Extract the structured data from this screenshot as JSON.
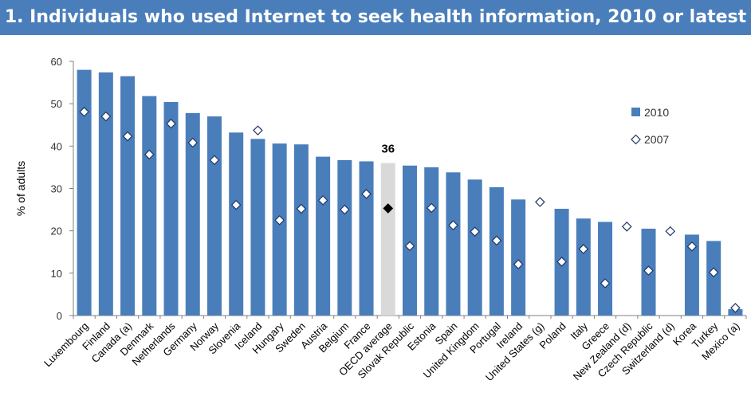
{
  "chart_data": {
    "type": "bar",
    "title": "1. Individuals who used Internet to seek health information, 2010 or latest",
    "ylabel": "% of adults",
    "ylim": [
      0,
      60
    ],
    "yticks": [
      0,
      10,
      20,
      30,
      40,
      50,
      60
    ],
    "legend_position": "right",
    "highlight_category": "OECD average",
    "highlight_label": "36",
    "colors": {
      "bar": "#4a7ebb",
      "highlight": "#d9d9d9",
      "marker_fill": "#ffffff",
      "marker_stroke": "#1f3864",
      "highlight_marker": "#000000",
      "title_bg": "#4a7ebb"
    },
    "categories": [
      "Luxembourg",
      "Finland",
      "Canada (a)",
      "Denmark",
      "Netherlands",
      "Germany",
      "Norway",
      "Slovenia",
      "Iceland",
      "Hungary",
      "Sweden",
      "Austria",
      "Belgium",
      "France",
      "OECD average",
      "Slovak Republic",
      "Estonia",
      "Spain",
      "United Kingdom",
      "Portugal",
      "Ireland",
      "United States (g)",
      "Poland",
      "Italy",
      "Greece",
      "New Zealand (d)",
      "Czech Republic",
      "Switzerland (d)",
      "Korea",
      "Turkey",
      "Mexico (a)"
    ],
    "series": [
      {
        "name": "2010",
        "kind": "bar",
        "values": [
          58,
          57.4,
          56.5,
          51.8,
          50.4,
          47.8,
          47,
          43.2,
          41.7,
          40.6,
          40.4,
          37.5,
          36.7,
          36.4,
          36,
          35.4,
          35,
          33.8,
          32.1,
          30.3,
          27.4,
          null,
          25.2,
          22.9,
          22.1,
          null,
          20.5,
          null,
          19.1,
          17.6,
          1.5
        ]
      },
      {
        "name": "2007",
        "kind": "marker",
        "values": [
          48.1,
          47,
          42.3,
          38,
          45.3,
          40.8,
          36.7,
          26.1,
          43.7,
          22.5,
          25.2,
          27.2,
          25,
          28.7,
          25.3,
          16.4,
          25.4,
          21.3,
          19.8,
          17.7,
          12.1,
          26.8,
          12.7,
          15.7,
          7.6,
          21,
          10.6,
          19.9,
          16.3,
          10.2,
          1.8
        ]
      }
    ]
  }
}
